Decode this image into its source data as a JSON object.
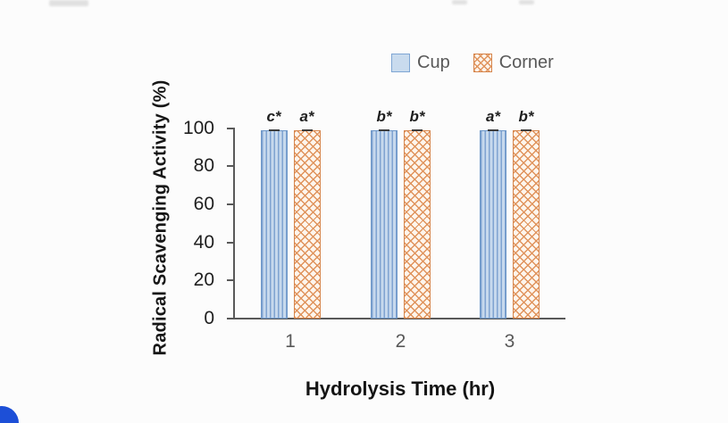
{
  "chart_data": {
    "type": "bar",
    "title": "",
    "categories": [
      "1",
      "2",
      "3"
    ],
    "series": [
      {
        "name": "Cup",
        "values": [
          99,
          99,
          99
        ],
        "sig_labels": [
          "c*",
          "b*",
          "a*"
        ],
        "pattern": "vertical-stripes",
        "fill": "#c7d9ed",
        "stroke": "#6d97c8"
      },
      {
        "name": "Corner",
        "values": [
          99,
          99,
          99
        ],
        "sig_labels": [
          "a*",
          "b*",
          "b*"
        ],
        "pattern": "diagonal-crosshatch",
        "fill": "#fdf5ec",
        "stroke": "#d6854b"
      }
    ],
    "xlabel": "Hydrolysis Time (hr)",
    "ylabel": "Radical Scavenging Activity (%)",
    "ylim": [
      0,
      100
    ],
    "yticks": [
      0,
      20,
      40,
      60,
      80,
      100
    ],
    "legend_position": "top-right",
    "grid": false,
    "error_bars": true
  },
  "colors": {
    "axis": "#595959",
    "tick_text": "#1f1f1f",
    "category_text": "#595959",
    "legend_text": "#595959",
    "corner_button": "#1d4fd7"
  }
}
